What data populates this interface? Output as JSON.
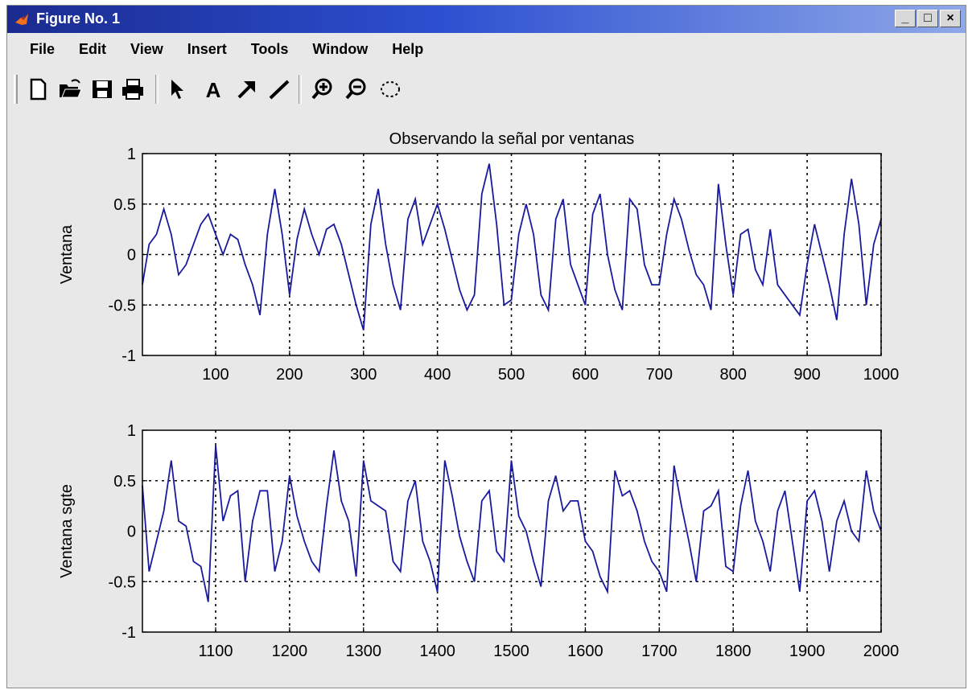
{
  "window": {
    "title": "Figure No. 1",
    "controls": {
      "minimize": "_",
      "maximize": "□",
      "close": "×"
    }
  },
  "menu": {
    "items": [
      "File",
      "Edit",
      "View",
      "Insert",
      "Tools",
      "Window",
      "Help"
    ]
  },
  "toolbar": {
    "buttons": [
      "new-file-icon",
      "open-folder-icon",
      "save-icon",
      "print-icon",
      "arrow-select-icon",
      "text-icon",
      "arrow-icon",
      "line-icon",
      "zoom-in-icon",
      "zoom-out-icon",
      "rotate-icon"
    ]
  },
  "colors": {
    "line": "#1a1a9c",
    "grid": "#000000",
    "titlebar_start": "#1a2b8f",
    "titlebar_end": "#8ea8e8"
  },
  "chart_data": [
    {
      "type": "line",
      "title": "Observando la señal por ventanas",
      "xlabel": "",
      "ylabel": "Ventana",
      "xlim": [
        1,
        1000
      ],
      "ylim": [
        -1,
        1
      ],
      "xticks": [
        100,
        200,
        300,
        400,
        500,
        600,
        700,
        800,
        900,
        1000
      ],
      "yticks": [
        -1,
        -0.5,
        0,
        0.5,
        1
      ],
      "grid": true,
      "x": [
        1,
        10,
        20,
        30,
        40,
        50,
        60,
        70,
        80,
        90,
        100,
        110,
        120,
        130,
        140,
        150,
        160,
        170,
        180,
        190,
        200,
        210,
        220,
        230,
        240,
        250,
        260,
        270,
        280,
        290,
        300,
        310,
        320,
        330,
        340,
        350,
        360,
        370,
        380,
        390,
        400,
        410,
        420,
        430,
        440,
        450,
        460,
        470,
        480,
        490,
        500,
        510,
        520,
        530,
        540,
        550,
        560,
        570,
        580,
        590,
        600,
        610,
        620,
        630,
        640,
        650,
        660,
        670,
        680,
        690,
        700,
        710,
        720,
        730,
        740,
        750,
        760,
        770,
        780,
        790,
        800,
        810,
        820,
        830,
        840,
        850,
        860,
        870,
        880,
        890,
        900,
        910,
        920,
        930,
        940,
        950,
        960,
        970,
        980,
        990,
        1000
      ],
      "y": [
        -0.3,
        0.1,
        0.2,
        0.45,
        0.2,
        -0.2,
        -0.1,
        0.1,
        0.3,
        0.4,
        0.2,
        0.0,
        0.2,
        0.15,
        -0.1,
        -0.3,
        -0.6,
        0.2,
        0.65,
        0.2,
        -0.4,
        0.15,
        0.45,
        0.2,
        0.0,
        0.25,
        0.3,
        0.1,
        -0.2,
        -0.5,
        -0.75,
        0.3,
        0.65,
        0.1,
        -0.3,
        -0.55,
        0.35,
        0.55,
        0.1,
        0.3,
        0.5,
        0.25,
        -0.05,
        -0.35,
        -0.55,
        -0.4,
        0.6,
        0.9,
        0.3,
        -0.5,
        -0.45,
        0.2,
        0.5,
        0.2,
        -0.4,
        -0.55,
        0.35,
        0.55,
        -0.1,
        -0.3,
        -0.5,
        0.4,
        0.6,
        0.0,
        -0.35,
        -0.55,
        0.55,
        0.45,
        -0.1,
        -0.3,
        -0.3,
        0.2,
        0.55,
        0.35,
        0.05,
        -0.2,
        -0.3,
        -0.55,
        0.7,
        0.1,
        -0.4,
        0.2,
        0.25,
        -0.15,
        -0.3,
        0.25,
        -0.3,
        -0.4,
        -0.5,
        -0.6,
        -0.1,
        0.3,
        0.0,
        -0.3,
        -0.65,
        0.2,
        0.75,
        0.3,
        -0.5,
        0.1,
        0.35
      ]
    },
    {
      "type": "line",
      "title": "",
      "xlabel": "",
      "ylabel": "Ventana sgte",
      "xlim": [
        1001,
        2000
      ],
      "ylim": [
        -1,
        1
      ],
      "xticks": [
        1100,
        1200,
        1300,
        1400,
        1500,
        1600,
        1700,
        1800,
        1900,
        2000
      ],
      "yticks": [
        -1,
        -0.5,
        0,
        0.5,
        1
      ],
      "grid": true,
      "x": [
        1001,
        1010,
        1020,
        1030,
        1040,
        1050,
        1060,
        1070,
        1080,
        1090,
        1100,
        1110,
        1120,
        1130,
        1140,
        1150,
        1160,
        1170,
        1180,
        1190,
        1200,
        1210,
        1220,
        1230,
        1240,
        1250,
        1260,
        1270,
        1280,
        1290,
        1300,
        1310,
        1320,
        1330,
        1340,
        1350,
        1360,
        1370,
        1380,
        1390,
        1400,
        1410,
        1420,
        1430,
        1440,
        1450,
        1460,
        1470,
        1480,
        1490,
        1500,
        1510,
        1520,
        1530,
        1540,
        1550,
        1560,
        1570,
        1580,
        1590,
        1600,
        1610,
        1620,
        1630,
        1640,
        1650,
        1660,
        1670,
        1680,
        1690,
        1700,
        1710,
        1720,
        1730,
        1740,
        1750,
        1760,
        1770,
        1780,
        1790,
        1800,
        1810,
        1820,
        1830,
        1840,
        1850,
        1860,
        1870,
        1880,
        1890,
        1900,
        1910,
        1920,
        1930,
        1940,
        1950,
        1960,
        1970,
        1980,
        1990,
        2000
      ],
      "y": [
        0.45,
        -0.4,
        -0.1,
        0.2,
        0.7,
        0.1,
        0.05,
        -0.3,
        -0.35,
        -0.7,
        0.85,
        0.1,
        0.35,
        0.4,
        -0.5,
        0.1,
        0.4,
        0.4,
        -0.4,
        -0.1,
        0.55,
        0.15,
        -0.1,
        -0.3,
        -0.4,
        0.25,
        0.8,
        0.3,
        0.1,
        -0.45,
        0.7,
        0.3,
        0.25,
        0.2,
        -0.3,
        -0.4,
        0.3,
        0.5,
        -0.1,
        -0.3,
        -0.6,
        0.7,
        0.35,
        -0.05,
        -0.3,
        -0.5,
        0.3,
        0.4,
        -0.2,
        -0.3,
        0.7,
        0.15,
        0.0,
        -0.3,
        -0.55,
        0.3,
        0.55,
        0.2,
        0.3,
        0.3,
        -0.1,
        -0.2,
        -0.45,
        -0.6,
        0.6,
        0.35,
        0.4,
        0.2,
        -0.1,
        -0.3,
        -0.4,
        -0.6,
        0.65,
        0.25,
        -0.1,
        -0.5,
        0.2,
        0.25,
        0.4,
        -0.35,
        -0.4,
        0.25,
        0.6,
        0.1,
        -0.1,
        -0.4,
        0.2,
        0.4,
        -0.1,
        -0.6,
        0.3,
        0.4,
        0.1,
        -0.4,
        0.1,
        0.3,
        0.0,
        -0.1,
        0.6,
        0.2,
        0.0
      ]
    }
  ]
}
